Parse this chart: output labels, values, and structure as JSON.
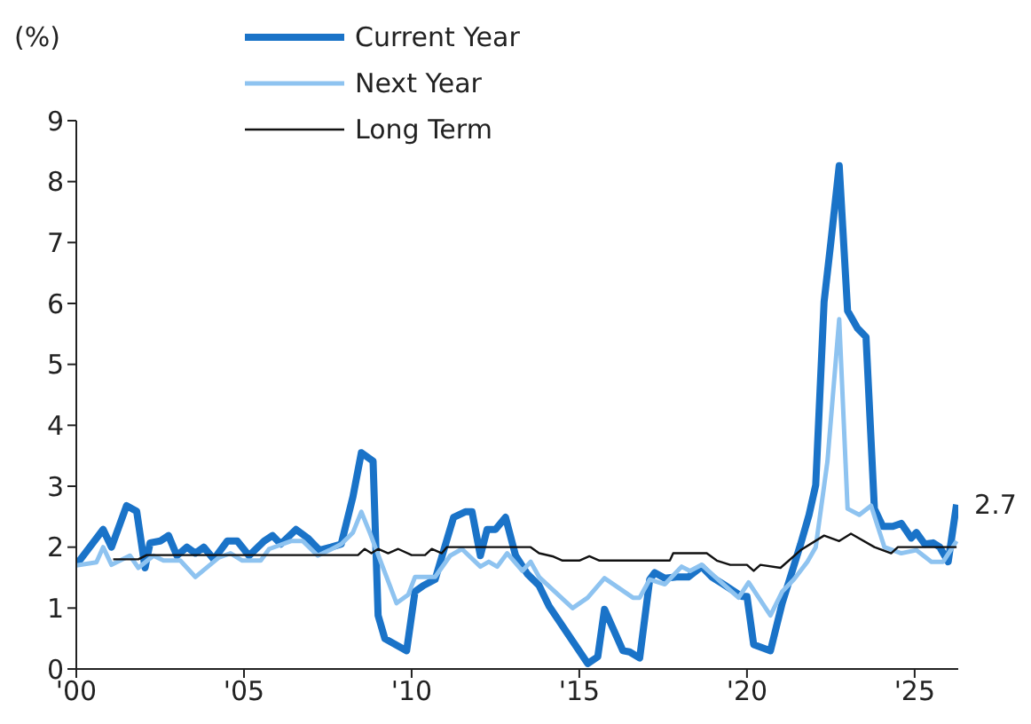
{
  "chart_data": {
    "type": "line",
    "ylabel": "(%)",
    "legend": "top left",
    "grid": false,
    "marker": "none",
    "line_style": "solid",
    "xlim": [
      2000,
      2026.3
    ],
    "xticks": [
      {
        "value": 2000,
        "label": "'00"
      },
      {
        "value": 2005,
        "label": "'05"
      },
      {
        "value": 2010,
        "label": "'10"
      },
      {
        "value": 2015,
        "label": "'15"
      },
      {
        "value": 2020,
        "label": "'20"
      },
      {
        "value": 2025,
        "label": "'25"
      }
    ],
    "ylim": [
      0,
      9
    ],
    "yticks": [
      0,
      1,
      2,
      3,
      4,
      5,
      6,
      7,
      8,
      9
    ],
    "annotations": [
      {
        "text": "2.7",
        "x": 2026.25,
        "y": 2.7
      }
    ],
    "series": [
      {
        "name": "Current Year",
        "color": "#1a73c8",
        "x": [
          2000.0,
          2000.8,
          2001.05,
          2001.5,
          2001.8,
          2002.05,
          2002.2,
          2002.5,
          2002.75,
          2003.0,
          2003.3,
          2003.55,
          2003.8,
          2004.1,
          2004.5,
          2004.8,
          2005.15,
          2005.6,
          2005.85,
          2006.1,
          2006.55,
          2006.9,
          2007.25,
          2007.6,
          2007.9,
          2008.25,
          2008.5,
          2008.85,
          2009.0,
          2009.2,
          2009.85,
          2010.1,
          2010.35,
          2010.7,
          2011.25,
          2011.6,
          2011.8,
          2012.05,
          2012.25,
          2012.5,
          2012.8,
          2013.1,
          2013.45,
          2013.8,
          2014.1,
          2015.25,
          2015.55,
          2015.75,
          2016.3,
          2016.5,
          2016.8,
          2017.1,
          2017.25,
          2017.55,
          2017.9,
          2018.25,
          2018.65,
          2018.95,
          2019.3,
          2019.85,
          2020.0,
          2020.2,
          2020.7,
          2021.05,
          2021.6,
          2021.85,
          2022.05,
          2022.3,
          2022.5,
          2022.75,
          2023.0,
          2023.3,
          2023.55,
          2023.8,
          2024.05,
          2024.35,
          2024.6,
          2024.9,
          2025.05,
          2025.3,
          2025.55,
          2025.75,
          2026.0,
          2026.25
        ],
        "values": [
          1.71,
          2.29,
          2.0,
          2.68,
          2.59,
          1.66,
          2.07,
          2.1,
          2.19,
          1.86,
          2.0,
          1.9,
          2.0,
          1.8,
          2.1,
          2.1,
          1.86,
          2.1,
          2.19,
          2.05,
          2.29,
          2.15,
          1.95,
          2.0,
          2.05,
          2.83,
          3.55,
          3.41,
          0.88,
          0.5,
          0.3,
          1.27,
          1.37,
          1.47,
          2.49,
          2.58,
          2.58,
          1.86,
          2.29,
          2.29,
          2.49,
          1.86,
          1.56,
          1.37,
          1.03,
          0.09,
          0.2,
          0.98,
          0.3,
          0.28,
          0.18,
          1.47,
          1.58,
          1.49,
          1.51,
          1.51,
          1.68,
          1.51,
          1.39,
          1.19,
          1.19,
          0.4,
          0.3,
          1.08,
          2.05,
          2.53,
          3.02,
          6.03,
          7.0,
          8.26,
          5.88,
          5.59,
          5.45,
          2.63,
          2.34,
          2.34,
          2.39,
          2.15,
          2.24,
          2.05,
          2.07,
          2.0,
          1.76,
          2.7
        ]
      },
      {
        "name": "Next Year",
        "color": "#8ec3f0",
        "x": [
          2000.0,
          2000.6,
          2000.8,
          2001.05,
          2001.6,
          2001.85,
          2002.3,
          2002.6,
          2003.1,
          2003.55,
          2004.25,
          2004.6,
          2004.95,
          2005.5,
          2005.75,
          2006.4,
          2006.75,
          2007.2,
          2007.55,
          2007.9,
          2008.25,
          2008.5,
          2008.75,
          2009.15,
          2009.55,
          2009.9,
          2010.1,
          2010.7,
          2011.15,
          2011.5,
          2012.05,
          2012.3,
          2012.55,
          2012.85,
          2013.3,
          2013.55,
          2013.8,
          2014.8,
          2015.25,
          2015.75,
          2016.6,
          2016.8,
          2017.1,
          2017.55,
          2018.05,
          2018.3,
          2018.65,
          2019.3,
          2019.75,
          2020.05,
          2020.7,
          2021.05,
          2021.4,
          2021.8,
          2022.05,
          2022.4,
          2022.75,
          2023.0,
          2023.35,
          2023.7,
          2024.1,
          2024.6,
          2025.05,
          2025.5,
          2025.85,
          2026.25
        ],
        "values": [
          1.7,
          1.75,
          2.0,
          1.71,
          1.86,
          1.66,
          1.86,
          1.78,
          1.78,
          1.51,
          1.83,
          1.9,
          1.78,
          1.78,
          1.97,
          2.1,
          2.1,
          1.86,
          1.95,
          2.05,
          2.24,
          2.58,
          2.24,
          1.66,
          1.08,
          1.22,
          1.51,
          1.51,
          1.86,
          1.97,
          1.68,
          1.76,
          1.68,
          1.9,
          1.61,
          1.76,
          1.51,
          1.0,
          1.17,
          1.49,
          1.17,
          1.17,
          1.47,
          1.39,
          1.68,
          1.61,
          1.71,
          1.39,
          1.17,
          1.42,
          0.88,
          1.27,
          1.47,
          1.76,
          2.0,
          3.41,
          5.74,
          2.63,
          2.53,
          2.68,
          2.0,
          1.9,
          1.95,
          1.76,
          1.76,
          2.1
        ]
      },
      {
        "name": "Long Term",
        "color": "#111111",
        "x": [
          2001.1,
          2001.85,
          2002.1,
          2008.4,
          2008.6,
          2008.8,
          2009.0,
          2009.3,
          2009.6,
          2010.0,
          2010.4,
          2010.6,
          2010.9,
          2011.05,
          2013.55,
          2013.8,
          2014.2,
          2014.5,
          2015.0,
          2015.3,
          2015.6,
          2017.7,
          2017.8,
          2018.8,
          2019.1,
          2019.5,
          2020.0,
          2020.2,
          2020.4,
          2021.0,
          2021.6,
          2022.3,
          2022.75,
          2023.1,
          2023.8,
          2024.3,
          2024.5,
          2026.25
        ],
        "values": [
          1.8,
          1.8,
          1.87,
          1.87,
          1.97,
          1.9,
          1.97,
          1.9,
          1.97,
          1.87,
          1.87,
          1.97,
          1.9,
          2.0,
          2.0,
          1.9,
          1.85,
          1.78,
          1.78,
          1.85,
          1.78,
          1.78,
          1.9,
          1.9,
          1.78,
          1.71,
          1.71,
          1.61,
          1.71,
          1.66,
          1.95,
          2.19,
          2.1,
          2.22,
          2.0,
          1.9,
          2.0,
          2.0
        ]
      }
    ]
  }
}
